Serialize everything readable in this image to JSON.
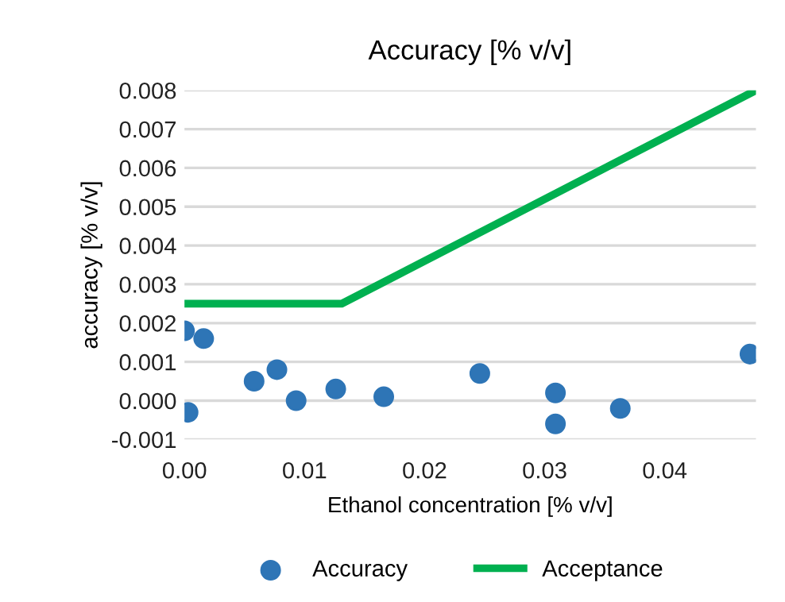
{
  "chart_data": {
    "type": "scatter",
    "title": "Accuracy [% v/v]",
    "xlabel": "Ethanol concentration [% v/v]",
    "ylabel": "accuracy [% v/v]",
    "xlim": [
      0,
      0.0476
    ],
    "xticks": [
      {
        "value": 0,
        "label": "0.00"
      },
      {
        "value": 0.01,
        "label": "0.01"
      },
      {
        "value": 0.02,
        "label": "0.02"
      },
      {
        "value": 0.03,
        "label": "0.03"
      },
      {
        "value": 0.04,
        "label": "0.04"
      }
    ],
    "ylim": [
      -0.001,
      0.008
    ],
    "yticks": [
      {
        "value": -0.001,
        "label": "-0.001"
      },
      {
        "value": 0,
        "label": "0.000"
      },
      {
        "value": 0.001,
        "label": "0.001"
      },
      {
        "value": 0.002,
        "label": "0.002"
      },
      {
        "value": 0.003,
        "label": "0.003"
      },
      {
        "value": 0.004,
        "label": "0.004"
      },
      {
        "value": 0.005,
        "label": "0.005"
      },
      {
        "value": 0.006,
        "label": "0.006"
      },
      {
        "value": 0.007,
        "label": "0.007"
      },
      {
        "value": 0.008,
        "label": "0.008"
      }
    ],
    "grid": "y",
    "legend": "bottom",
    "series": [
      {
        "name": "Accuracy",
        "marker": "circle",
        "color": "#2e75b6",
        "x": [
          0,
          0.0003,
          0.0016,
          0.0058,
          0.0077,
          0.0093,
          0.0126,
          0.0166,
          0.0246,
          0.0309,
          0.0309,
          0.0363,
          0.0471
        ],
        "values": [
          0.0018,
          -0.0003,
          0.0016,
          0.0005,
          0.0008,
          0.0,
          0.0003,
          0.0001,
          0.0007,
          0.0002,
          -0.0006,
          -0.0002,
          0.0012
        ]
      },
      {
        "name": "Acceptance",
        "type": "line",
        "color": "#00b050",
        "x": [
          0,
          0.0131,
          0.0476
        ],
        "values": [
          0.0025,
          0.0025,
          0.008
        ]
      }
    ]
  }
}
